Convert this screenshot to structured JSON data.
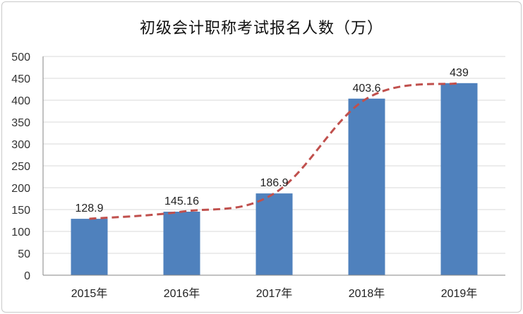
{
  "chart_data": {
    "type": "bar",
    "title": "初级会计职称考试报名人数（万）",
    "categories": [
      "2015年",
      "2016年",
      "2017年",
      "2018年",
      "2019年"
    ],
    "series": [
      {
        "values": [
          128.9,
          145.16,
          186.9,
          403.6,
          439
        ],
        "data_labels": [
          "128.9",
          "145.16",
          "186.9",
          "403.6",
          "439"
        ]
      }
    ],
    "trend_line": {
      "style": "dashed",
      "follows": "values"
    },
    "ylim": [
      0,
      500
    ],
    "yticks": [
      "0",
      "50",
      "100",
      "150",
      "200",
      "250",
      "300",
      "350",
      "400",
      "450",
      "500"
    ],
    "grid": true,
    "legend": "none",
    "colors": {
      "bar": "#4f81bd",
      "trend": "#c0504d",
      "grid": "#d9d9d9",
      "axis": "#868686"
    }
  }
}
